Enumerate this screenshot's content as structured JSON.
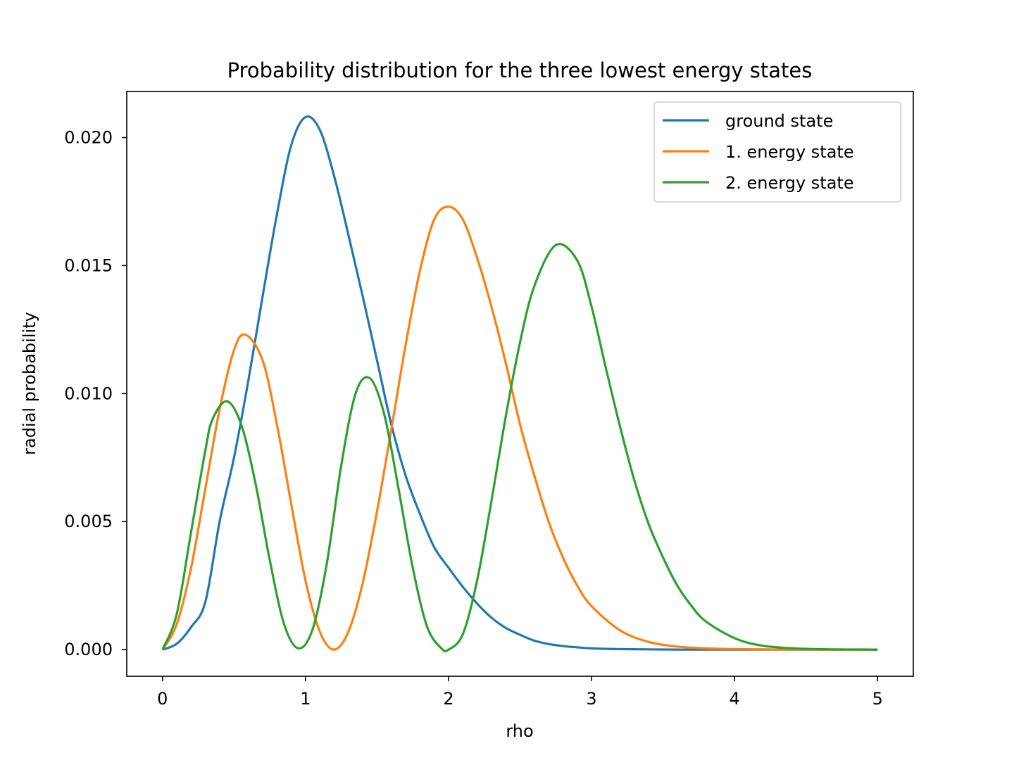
{
  "chart_data": {
    "type": "line",
    "title": "Probability distribution for the three lowest energy states",
    "xlabel": "rho",
    "ylabel": "radial probability",
    "xlim": [
      -0.25,
      5.25
    ],
    "ylim": [
      -0.00104,
      0.0218
    ],
    "xticks": [
      0,
      1,
      2,
      3,
      4,
      5
    ],
    "xtick_labels": [
      "0",
      "1",
      "2",
      "3",
      "4",
      "5"
    ],
    "yticks": [
      0.0,
      0.005,
      0.01,
      0.015,
      0.02
    ],
    "ytick_labels": [
      "0.000",
      "0.005",
      "0.010",
      "0.015",
      "0.020"
    ],
    "grid": false,
    "legend_position": "top-right",
    "series": [
      {
        "name": "ground state",
        "color": "#1f77b4",
        "x": [
          0,
          0.1,
          0.2,
          0.3,
          0.4,
          0.5,
          0.6,
          0.7,
          0.8,
          0.9,
          1.0,
          1.1,
          1.2,
          1.3,
          1.4,
          1.5,
          1.6,
          1.7,
          1.8,
          1.9,
          2.0,
          2.1,
          2.2,
          2.3,
          2.4,
          2.5,
          2.6,
          2.7,
          2.8,
          2.9,
          3.0,
          3.2,
          3.4,
          3.6,
          3.8,
          4.0,
          4.5,
          5.0
        ],
        "y": [
          0.0,
          0.00023,
          0.00088,
          0.00187,
          0.00502,
          0.0075,
          0.0105,
          0.0138,
          0.017,
          0.0197,
          0.0208,
          0.0203,
          0.0185,
          0.0162,
          0.0138,
          0.0113,
          0.0088,
          0.0068,
          0.0053,
          0.004,
          0.0032,
          0.00245,
          0.0018,
          0.00125,
          0.00085,
          0.00058,
          0.00035,
          0.00022,
          0.00014,
          9e-05,
          5e-05,
          2e-05,
          1e-05,
          0.0,
          0.0,
          0.0,
          0.0,
          0.0
        ]
      },
      {
        "name": "1. energy state",
        "color": "#ff7f0e",
        "x": [
          0,
          0.1,
          0.2,
          0.3,
          0.4,
          0.5,
          0.58,
          0.7,
          0.8,
          0.9,
          1.0,
          1.1,
          1.2,
          1.3,
          1.4,
          1.5,
          1.6,
          1.7,
          1.8,
          1.9,
          2.0,
          2.1,
          2.2,
          2.3,
          2.4,
          2.5,
          2.6,
          2.7,
          2.8,
          2.9,
          3.0,
          3.2,
          3.4,
          3.6,
          3.8,
          4.0,
          4.5,
          5.0
        ],
        "y": [
          0.0,
          0.001,
          0.0032,
          0.0063,
          0.0094,
          0.0117,
          0.0123,
          0.0113,
          0.0088,
          0.0057,
          0.0027,
          0.0007,
          0.0,
          0.0007,
          0.0026,
          0.0054,
          0.0086,
          0.0119,
          0.0148,
          0.0168,
          0.0173,
          0.0168,
          0.0153,
          0.0134,
          0.0112,
          0.0088,
          0.0068,
          0.005,
          0.0036,
          0.0025,
          0.0017,
          0.00075,
          0.0003,
          0.00012,
          5e-05,
          2e-05,
          0.0,
          0.0
        ]
      },
      {
        "name": "2. energy state",
        "color": "#2ca02c",
        "x": [
          0,
          0.1,
          0.2,
          0.3,
          0.35,
          0.45,
          0.55,
          0.65,
          0.75,
          0.85,
          0.95,
          1.05,
          1.15,
          1.25,
          1.35,
          1.45,
          1.55,
          1.65,
          1.75,
          1.85,
          1.95,
          2.0,
          2.1,
          2.2,
          2.3,
          2.4,
          2.5,
          2.6,
          2.75,
          2.9,
          3.0,
          3.1,
          3.2,
          3.3,
          3.4,
          3.5,
          3.6,
          3.7,
          3.8,
          4.0,
          4.2,
          4.5,
          5.0
        ],
        "y": [
          0.0,
          0.0014,
          0.0046,
          0.0078,
          0.009,
          0.0097,
          0.0088,
          0.0065,
          0.0035,
          0.001,
          5e-05,
          0.0008,
          0.0034,
          0.0072,
          0.01,
          0.0106,
          0.0092,
          0.0063,
          0.0032,
          0.0009,
          5e-05,
          0.0,
          0.0006,
          0.0027,
          0.0058,
          0.0091,
          0.012,
          0.0142,
          0.0158,
          0.0152,
          0.0134,
          0.011,
          0.0087,
          0.0066,
          0.0049,
          0.0036,
          0.0025,
          0.0017,
          0.0011,
          0.00045,
          0.00015,
          3e-05,
          0.0
        ]
      }
    ]
  }
}
